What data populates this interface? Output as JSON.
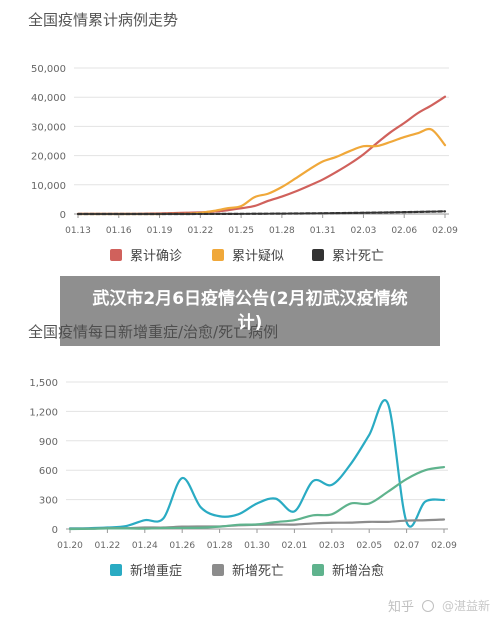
{
  "overlay": {
    "text": "武汉市2月6日疫情公告(2月初武汉疫情统计)"
  },
  "watermark": {
    "logo": "知乎",
    "author": "@湛益新"
  },
  "chart_data": [
    {
      "type": "line",
      "title": "全国疫情累计病例走势",
      "x": [
        "01.13",
        "01.14",
        "01.15",
        "01.16",
        "01.17",
        "01.18",
        "01.19",
        "01.20",
        "01.21",
        "01.22",
        "01.23",
        "01.24",
        "01.25",
        "01.26",
        "01.27",
        "01.28",
        "01.29",
        "01.30",
        "01.31",
        "02.01",
        "02.02",
        "02.03",
        "02.04",
        "02.05",
        "02.06",
        "02.07",
        "02.08",
        "02.09"
      ],
      "x_ticks": [
        "01.13",
        "01.16",
        "01.19",
        "01.22",
        "01.25",
        "01.28",
        "01.31",
        "02.03",
        "02.06",
        "02.09"
      ],
      "ylim": [
        0,
        50000
      ],
      "y_ticks": [
        0,
        10000,
        20000,
        30000,
        40000,
        50000
      ],
      "y_tick_labels": [
        "0",
        "10,000",
        "20,000",
        "30,000",
        "40,000",
        "50,000"
      ],
      "grid": true,
      "legend_position": "bottom",
      "series": [
        {
          "name": "累计确诊",
          "color": "#d0615c",
          "values": [
            41,
            41,
            41,
            45,
            62,
            121,
            198,
            291,
            440,
            571,
            830,
            1287,
            1975,
            2744,
            4515,
            5974,
            7711,
            9692,
            11791,
            14380,
            17205,
            20438,
            24324,
            28018,
            31161,
            34546,
            37198,
            40171
          ]
        },
        {
          "name": "累计疑似",
          "color": "#f0a83a",
          "values": [
            0,
            0,
            0,
            0,
            0,
            0,
            0,
            54,
            37,
            393,
            1072,
            1965,
            2684,
            5794,
            6973,
            9239,
            12167,
            15238,
            17988,
            19544,
            21558,
            23214,
            23260,
            24702,
            26359,
            27657,
            28942,
            23589
          ]
        },
        {
          "name": "累计死亡",
          "color": "#333333",
          "values": [
            1,
            1,
            2,
            2,
            2,
            3,
            4,
            6,
            9,
            17,
            25,
            41,
            56,
            80,
            106,
            132,
            170,
            213,
            259,
            304,
            361,
            425,
            490,
            563,
            636,
            722,
            811,
            908
          ]
        }
      ]
    },
    {
      "type": "line",
      "title": "全国疫情每日新增重症/治愈/死亡病例",
      "x": [
        "01.20",
        "01.21",
        "01.22",
        "01.23",
        "01.24",
        "01.25",
        "01.26",
        "01.27",
        "01.28",
        "01.29",
        "01.30",
        "01.31",
        "02.01",
        "02.02",
        "02.03",
        "02.04",
        "02.05",
        "02.06",
        "02.07",
        "02.08",
        "02.09"
      ],
      "x_ticks": [
        "01.20",
        "01.22",
        "01.24",
        "01.26",
        "01.28",
        "01.30",
        "02.01",
        "02.03",
        "02.05",
        "02.07",
        "02.09"
      ],
      "ylim": [
        0,
        1500
      ],
      "y_ticks": [
        0,
        300,
        600,
        900,
        1200,
        1500
      ],
      "y_tick_labels": [
        "0",
        "300",
        "600",
        "900",
        "1,200",
        "1,500"
      ],
      "grid": true,
      "legend_position": "bottom",
      "series": [
        {
          "name": "新增重症",
          "color": "#2aabc3",
          "values": [
            6,
            8,
            15,
            30,
            90,
            110,
            520,
            220,
            130,
            150,
            260,
            310,
            180,
            490,
            450,
            660,
            960,
            1280,
            70,
            280,
            296
          ]
        },
        {
          "name": "新增死亡",
          "color": "#8c8c8c",
          "values": [
            3,
            3,
            8,
            8,
            16,
            15,
            24,
            26,
            26,
            38,
            43,
            46,
            45,
            57,
            64,
            65,
            73,
            73,
            86,
            89,
            97
          ]
        },
        {
          "name": "新增治愈",
          "color": "#5fb38d",
          "values": [
            0,
            2,
            6,
            6,
            4,
            10,
            11,
            13,
            24,
            43,
            47,
            71,
            90,
            140,
            150,
            260,
            260,
            380,
            510,
            600,
            632
          ]
        }
      ]
    }
  ]
}
